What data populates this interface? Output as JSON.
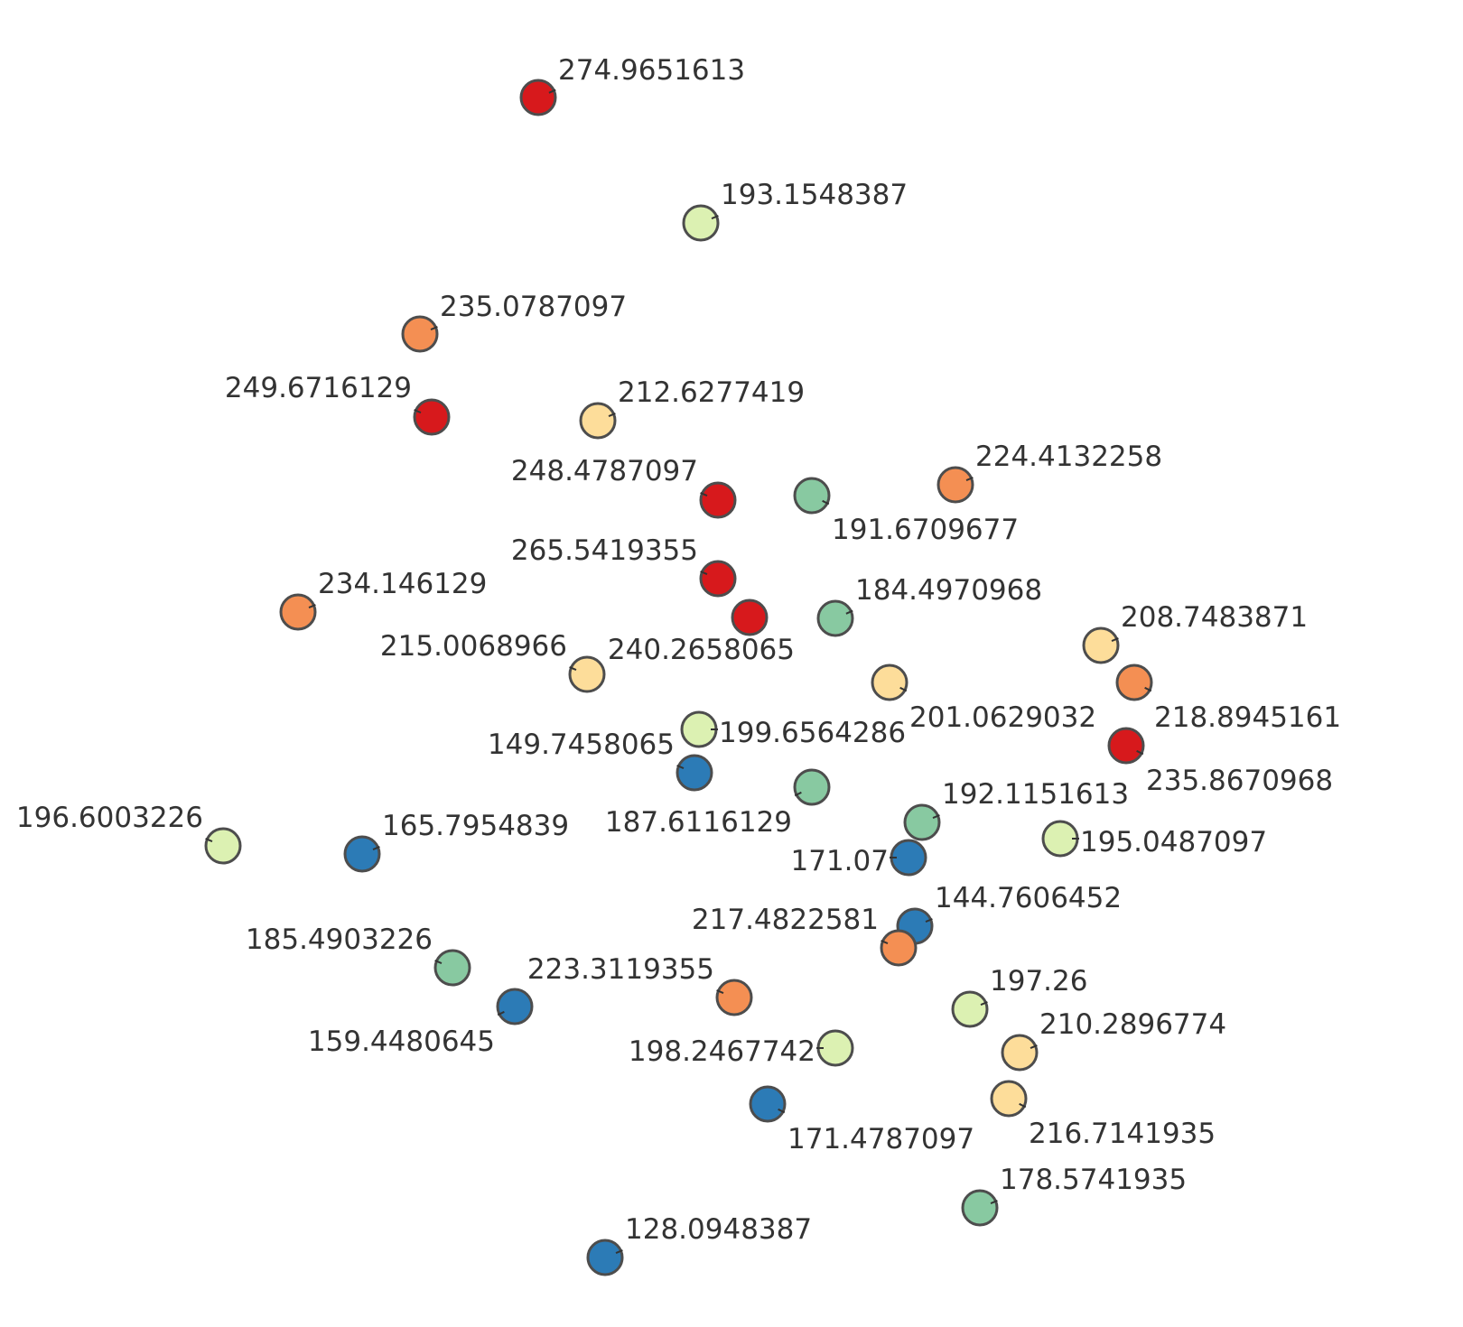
{
  "chart_data": {
    "type": "scatter",
    "title": "",
    "xlabel": "",
    "ylabel": "",
    "x_axis_visible": false,
    "y_axis_visible": false,
    "grid": false,
    "legend": "none",
    "color_scale": {
      "type": "sequential-diverging",
      "stops": [
        "#2c7bb6",
        "#88c9a1",
        "#dcf1b2",
        "#fddd9a",
        "#f48f53",
        "#d7191c"
      ]
    },
    "points": [
      {
        "label": "274.9651613",
        "value": 274.9651613,
        "color": "#d7191c"
      },
      {
        "label": "193.1548387",
        "value": 193.1548387,
        "color": "#dcf1b2"
      },
      {
        "label": "235.0787097",
        "value": 235.0787097,
        "color": "#f48f53"
      },
      {
        "label": "249.6716129",
        "value": 249.6716129,
        "color": "#d7191c"
      },
      {
        "label": "212.6277419",
        "value": 212.6277419,
        "color": "#fddd9a"
      },
      {
        "label": "248.4787097",
        "value": 248.4787097,
        "color": "#d7191c"
      },
      {
        "label": "191.6709677",
        "value": 191.6709677,
        "color": "#88c9a1"
      },
      {
        "label": "224.4132258",
        "value": 224.4132258,
        "color": "#f48f53"
      },
      {
        "label": "265.5419355",
        "value": 265.5419355,
        "color": "#d7191c"
      },
      {
        "label": "240.2658065",
        "value": 240.2658065,
        "color": "#d7191c"
      },
      {
        "label": "184.4970968",
        "value": 184.4970968,
        "color": "#88c9a1"
      },
      {
        "label": "234.146129",
        "value": 234.146129,
        "color": "#f48f53"
      },
      {
        "label": "208.7483871",
        "value": 208.7483871,
        "color": "#fddd9a"
      },
      {
        "label": "215.0068966",
        "value": 215.0068966,
        "color": "#fddd9a"
      },
      {
        "label": "201.0629032",
        "value": 201.0629032,
        "color": "#fddd9a"
      },
      {
        "label": "218.8945161",
        "value": 218.8945161,
        "color": "#f48f53"
      },
      {
        "label": "199.6564286",
        "value": 199.6564286,
        "color": "#dcf1b2"
      },
      {
        "label": "235.8670968",
        "value": 235.8670968,
        "color": "#d7191c"
      },
      {
        "label": "149.7458065",
        "value": 149.7458065,
        "color": "#2c7bb6"
      },
      {
        "label": "187.6116129",
        "value": 187.6116129,
        "color": "#88c9a1"
      },
      {
        "label": "192.1151613",
        "value": 192.1151613,
        "color": "#88c9a1"
      },
      {
        "label": "196.6003226",
        "value": 196.6003226,
        "color": "#dcf1b2"
      },
      {
        "label": "165.7954839",
        "value": 165.7954839,
        "color": "#2c7bb6"
      },
      {
        "label": "195.0487097",
        "value": 195.0487097,
        "color": "#dcf1b2"
      },
      {
        "label": "171.07",
        "value": 171.07,
        "color": "#2c7bb6"
      },
      {
        "label": "144.7606452",
        "value": 144.7606452,
        "color": "#2c7bb6"
      },
      {
        "label": "217.4822581",
        "value": 217.4822581,
        "color": "#f48f53"
      },
      {
        "label": "185.4903226",
        "value": 185.4903226,
        "color": "#88c9a1"
      },
      {
        "label": "223.3119355",
        "value": 223.3119355,
        "color": "#f48f53"
      },
      {
        "label": "197.26",
        "value": 197.26,
        "color": "#dcf1b2"
      },
      {
        "label": "159.4480645",
        "value": 159.4480645,
        "color": "#2c7bb6"
      },
      {
        "label": "210.2896774",
        "value": 210.2896774,
        "color": "#fddd9a"
      },
      {
        "label": "198.2467742",
        "value": 198.2467742,
        "color": "#dcf1b2"
      },
      {
        "label": "216.7141935",
        "value": 216.7141935,
        "color": "#fddd9a"
      },
      {
        "label": "171.4787097",
        "value": 171.4787097,
        "color": "#2c7bb6"
      },
      {
        "label": "178.5741935",
        "value": 178.5741935,
        "color": "#88c9a1"
      },
      {
        "label": "128.0948387",
        "value": 128.0948387,
        "color": "#2c7bb6"
      }
    ]
  }
}
